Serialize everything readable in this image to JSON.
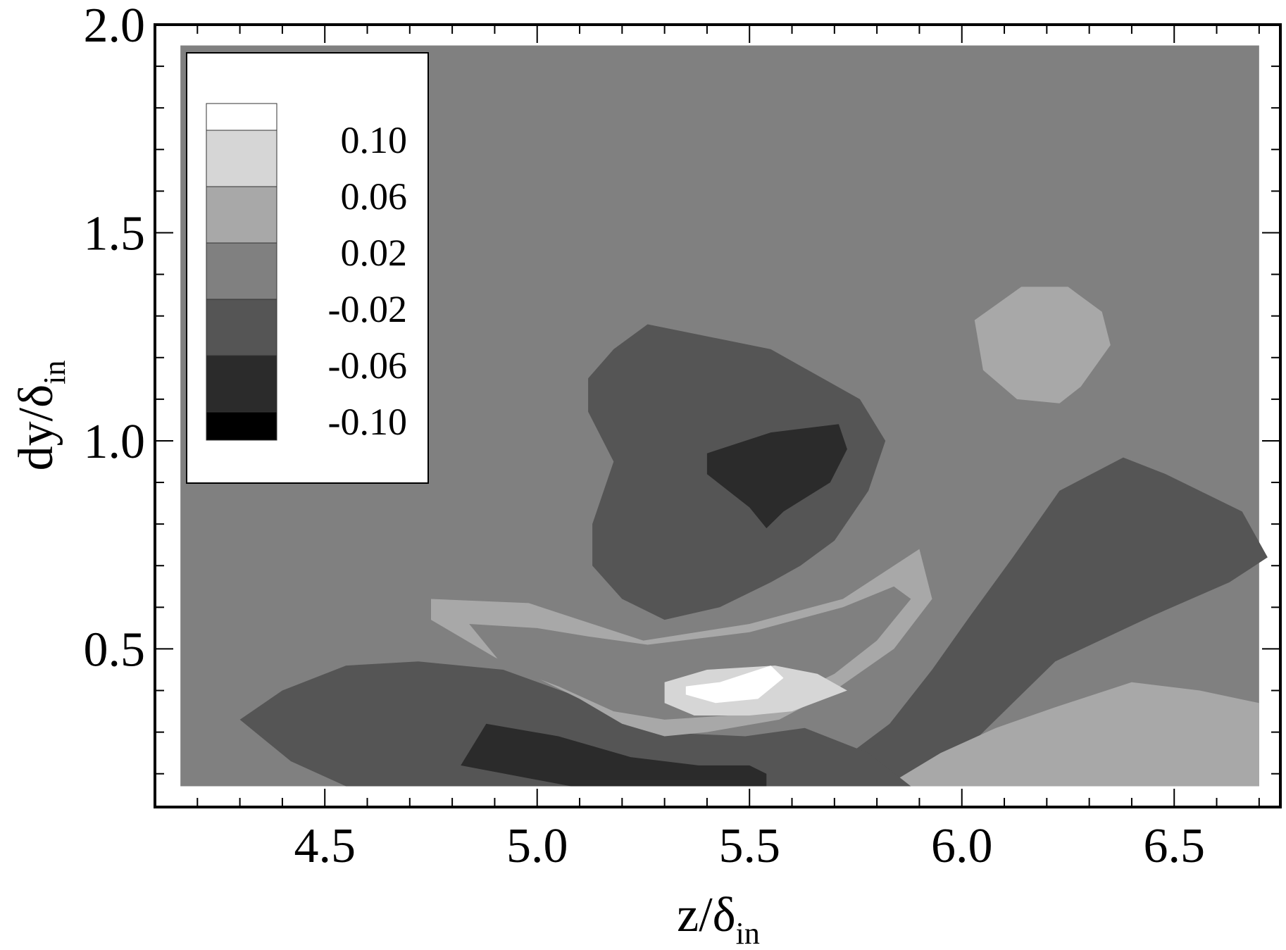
{
  "chart_data": {
    "type": "contour",
    "title": "",
    "xlabel": {
      "main": "z/δ",
      "sub": "in"
    },
    "ylabel": {
      "main": "dy/δ",
      "sub": "in"
    },
    "xlim": [
      4.1,
      6.75
    ],
    "ylim": [
      0.12,
      2.0
    ],
    "x_ticks": [
      "4.5",
      "5.0",
      "5.5",
      "6.0",
      "6.5"
    ],
    "y_ticks": [
      "0.5",
      "1.0",
      "1.5",
      "2.0"
    ],
    "x_tick_values": [
      4.5,
      5.0,
      5.5,
      6.0,
      6.5
    ],
    "y_tick_values": [
      0.5,
      1.0,
      1.5,
      2.0
    ],
    "data_extent": {
      "x": [
        4.16,
        6.7
      ],
      "y": [
        0.17,
        1.95
      ]
    },
    "legend": {
      "placement": "top-left",
      "levels": [
        "0.10",
        "0.06",
        "0.02",
        "-0.02",
        "-0.06",
        "-0.10"
      ],
      "band_colors": [
        "#ffffff",
        "#d6d6d6",
        "#a8a8a8",
        "#808080",
        "#555555",
        "#2b2b2b",
        "#000000"
      ]
    },
    "background_color": "#808080",
    "regions": [
      {
        "name": "upper-left-negative",
        "fill": "#555555",
        "points": [
          [
            5.26,
            1.28
          ],
          [
            5.55,
            1.22
          ],
          [
            5.76,
            1.1
          ],
          [
            5.82,
            1.0
          ],
          [
            5.78,
            0.88
          ],
          [
            5.7,
            0.76
          ],
          [
            5.62,
            0.7
          ],
          [
            5.55,
            0.66
          ],
          [
            5.43,
            0.6
          ],
          [
            5.3,
            0.57
          ],
          [
            5.2,
            0.62
          ],
          [
            5.13,
            0.7
          ],
          [
            5.13,
            0.8
          ],
          [
            5.18,
            0.95
          ],
          [
            5.12,
            1.07
          ],
          [
            5.12,
            1.15
          ],
          [
            5.18,
            1.22
          ]
        ]
      },
      {
        "name": "upper-left-core",
        "fill": "#2b2b2b",
        "points": [
          [
            5.4,
            0.97
          ],
          [
            5.55,
            1.02
          ],
          [
            5.71,
            1.04
          ],
          [
            5.73,
            0.98
          ],
          [
            5.69,
            0.9
          ],
          [
            5.58,
            0.83
          ],
          [
            5.54,
            0.79
          ],
          [
            5.5,
            0.84
          ],
          [
            5.4,
            0.92
          ]
        ]
      },
      {
        "name": "upper-right-positive",
        "fill": "#a8a8a8",
        "points": [
          [
            6.03,
            1.29
          ],
          [
            6.14,
            1.37
          ],
          [
            6.25,
            1.37
          ],
          [
            6.33,
            1.31
          ],
          [
            6.35,
            1.23
          ],
          [
            6.28,
            1.13
          ],
          [
            6.23,
            1.09
          ],
          [
            6.13,
            1.1
          ],
          [
            6.05,
            1.17
          ]
        ]
      },
      {
        "name": "right-negative",
        "fill": "#555555",
        "points": [
          [
            5.85,
            0.18
          ],
          [
            6.0,
            0.25
          ],
          [
            6.12,
            0.37
          ],
          [
            6.22,
            0.47
          ],
          [
            6.45,
            0.58
          ],
          [
            6.63,
            0.66
          ],
          [
            6.72,
            0.72
          ],
          [
            6.66,
            0.83
          ],
          [
            6.48,
            0.92
          ],
          [
            6.38,
            0.96
          ],
          [
            6.23,
            0.88
          ],
          [
            6.12,
            0.72
          ],
          [
            6.02,
            0.58
          ],
          [
            5.93,
            0.45
          ],
          [
            5.83,
            0.32
          ],
          [
            5.66,
            0.19
          ],
          [
            5.6,
            0.17
          ],
          [
            5.75,
            0.17
          ]
        ]
      },
      {
        "name": "lower-right-positive",
        "fill": "#a8a8a8",
        "points": [
          [
            5.82,
            0.17
          ],
          [
            5.95,
            0.25
          ],
          [
            6.08,
            0.31
          ],
          [
            6.22,
            0.36
          ],
          [
            6.4,
            0.42
          ],
          [
            6.56,
            0.4
          ],
          [
            6.7,
            0.37
          ],
          [
            6.7,
            0.17
          ]
        ]
      },
      {
        "name": "lower-left-negative",
        "fill": "#555555",
        "points": [
          [
            4.3,
            0.33
          ],
          [
            4.4,
            0.4
          ],
          [
            4.55,
            0.46
          ],
          [
            4.72,
            0.47
          ],
          [
            4.92,
            0.45
          ],
          [
            5.11,
            0.38
          ],
          [
            5.28,
            0.3
          ],
          [
            5.49,
            0.29
          ],
          [
            5.63,
            0.31
          ],
          [
            5.78,
            0.25
          ],
          [
            5.88,
            0.17
          ],
          [
            4.55,
            0.17
          ],
          [
            4.42,
            0.23
          ]
        ]
      },
      {
        "name": "lower-left-core",
        "fill": "#2b2b2b",
        "points": [
          [
            4.88,
            0.32
          ],
          [
            5.05,
            0.29
          ],
          [
            5.22,
            0.24
          ],
          [
            5.38,
            0.22
          ],
          [
            5.5,
            0.22
          ],
          [
            5.54,
            0.2
          ],
          [
            5.54,
            0.17
          ],
          [
            5.08,
            0.17
          ],
          [
            4.82,
            0.22
          ]
        ]
      },
      {
        "name": "center-band-positive",
        "fill": "#a8a8a8",
        "points": [
          [
            4.75,
            0.62
          ],
          [
            4.98,
            0.61
          ],
          [
            5.1,
            0.57
          ],
          [
            5.25,
            0.52
          ],
          [
            5.5,
            0.56
          ],
          [
            5.72,
            0.62
          ],
          [
            5.9,
            0.74
          ],
          [
            5.93,
            0.62
          ],
          [
            5.84,
            0.5
          ],
          [
            5.7,
            0.4
          ],
          [
            5.57,
            0.33
          ],
          [
            5.4,
            0.3
          ],
          [
            5.3,
            0.29
          ],
          [
            5.2,
            0.32
          ],
          [
            5.1,
            0.38
          ],
          [
            5.0,
            0.43
          ],
          [
            4.9,
            0.48
          ],
          [
            4.75,
            0.57
          ]
        ]
      },
      {
        "name": "center-band-gap",
        "fill": "#808080",
        "points": [
          [
            4.92,
            0.46
          ],
          [
            5.05,
            0.41
          ],
          [
            5.18,
            0.35
          ],
          [
            5.3,
            0.33
          ],
          [
            5.45,
            0.34
          ],
          [
            5.58,
            0.38
          ],
          [
            5.7,
            0.44
          ],
          [
            5.8,
            0.52
          ],
          [
            5.88,
            0.62
          ],
          [
            5.84,
            0.65
          ],
          [
            5.72,
            0.6
          ],
          [
            5.5,
            0.54
          ],
          [
            5.26,
            0.51
          ],
          [
            5.12,
            0.53
          ],
          [
            5.0,
            0.55
          ],
          [
            4.84,
            0.56
          ]
        ]
      },
      {
        "name": "center-strong-positive",
        "fill": "#d6d6d6",
        "points": [
          [
            5.3,
            0.42
          ],
          [
            5.4,
            0.45
          ],
          [
            5.56,
            0.46
          ],
          [
            5.66,
            0.44
          ],
          [
            5.73,
            0.4
          ],
          [
            5.6,
            0.35
          ],
          [
            5.5,
            0.34
          ],
          [
            5.37,
            0.34
          ],
          [
            5.3,
            0.37
          ]
        ]
      },
      {
        "name": "center-peak",
        "fill": "#ffffff",
        "points": [
          [
            5.35,
            0.41
          ],
          [
            5.43,
            0.42
          ],
          [
            5.55,
            0.46
          ],
          [
            5.58,
            0.43
          ],
          [
            5.52,
            0.38
          ],
          [
            5.42,
            0.37
          ],
          [
            5.35,
            0.39
          ]
        ]
      }
    ]
  }
}
